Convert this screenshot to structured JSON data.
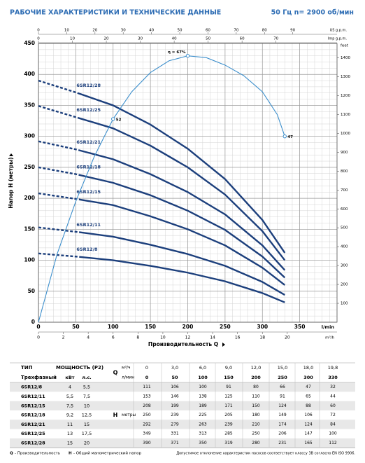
{
  "header": {
    "title": "РАБОЧИЕ ХАРАКТЕРИСТИКИ И ТЕХНИЧЕСКИЕ ДАННЫЕ",
    "subtitle": "50 Гц   n= 2900 об/мин"
  },
  "chart_data": {
    "type": "line",
    "x_label": "Производительность Q",
    "x_unit": "l/min",
    "y_label": "Напор H (метры)",
    "xlim": [
      0,
      400
    ],
    "xticks": [
      0,
      50,
      100,
      150,
      200,
      250,
      300,
      350
    ],
    "ylim": [
      0,
      450
    ],
    "yticks": [
      0,
      50,
      100,
      150,
      200,
      250,
      300,
      350,
      400,
      450
    ],
    "y2_label": "feet",
    "y2lim": [
      0,
      1476.4
    ],
    "y2ticks": [
      100,
      200,
      300,
      400,
      500,
      600,
      700,
      800,
      900,
      1000,
      1100,
      1200,
      1300,
      1400
    ],
    "top_axes": [
      {
        "label": "US g.p.m.",
        "lim": [
          0,
          105.67
        ],
        "ticks": [
          0,
          10,
          20,
          30,
          40,
          50,
          60,
          70,
          80,
          90
        ]
      },
      {
        "label": "Imp g.p.m.",
        "lim": [
          0,
          87.99
        ],
        "ticks": [
          0,
          10,
          20,
          30,
          40,
          50,
          60,
          70
        ]
      }
    ],
    "bottom_axis2": {
      "label": "m³/h",
      "lim": [
        0,
        24
      ],
      "ticks": [
        0,
        2,
        4,
        6,
        8,
        10,
        12,
        14,
        16,
        18,
        20
      ]
    },
    "grid": true,
    "x": [
      0,
      50,
      100,
      150,
      200,
      250,
      300,
      330
    ],
    "series": [
      {
        "name": "6SR12/8",
        "color": "#1c3f7c",
        "values": [
          111,
          106,
          100,
          91,
          80,
          66,
          47,
          32
        ]
      },
      {
        "name": "6SR12/11",
        "color": "#1c3f7c",
        "values": [
          153,
          146,
          138,
          125,
          110,
          91,
          65,
          44
        ]
      },
      {
        "name": "6SR12/15",
        "color": "#1c3f7c",
        "values": [
          208,
          199,
          189,
          171,
          150,
          124,
          88,
          60
        ]
      },
      {
        "name": "6SR12/18",
        "color": "#1c3f7c",
        "values": [
          250,
          239,
          225,
          205,
          180,
          149,
          106,
          72
        ]
      },
      {
        "name": "6SR12/21",
        "color": "#1c3f7c",
        "values": [
          292,
          279,
          263,
          239,
          210,
          174,
          124,
          84
        ]
      },
      {
        "name": "6SR12/25",
        "color": "#1c3f7c",
        "values": [
          349,
          331,
          313,
          285,
          250,
          206,
          147,
          100
        ]
      },
      {
        "name": "6SR12/28",
        "color": "#1c3f7c",
        "values": [
          390,
          371,
          350,
          319,
          280,
          231,
          165,
          112
        ]
      }
    ],
    "efficiency": {
      "color": "#3d8fcc",
      "x": [
        0,
        25,
        50,
        75,
        100,
        125,
        150,
        175,
        200,
        225,
        250,
        275,
        300,
        320,
        330
      ],
      "values": [
        0,
        110,
        195,
        268,
        328,
        372,
        403,
        422,
        430,
        427,
        415,
        398,
        372,
        335,
        300
      ],
      "annotations": [
        {
          "x": 200,
          "y": 430,
          "text": "η = 67%"
        },
        {
          "x": 100,
          "y": 328,
          "text": "52"
        },
        {
          "x": 330,
          "y": 300,
          "text": "47"
        }
      ]
    }
  },
  "table": {
    "type": "ТИП",
    "power": "МОЩНОСТЬ (P2)",
    "q": "Q",
    "q_unit1": "м³/ч",
    "q_unit2": "л/мин",
    "phase": "Трехфазный",
    "kw": "кВт",
    "hp": "л.с.",
    "h": "H",
    "h_unit": "метры",
    "flow_m3h": [
      "0",
      "3,0",
      "6,0",
      "9,0",
      "12,0",
      "15,0",
      "18,0",
      "19,8"
    ],
    "rows": [
      {
        "kw": "4",
        "hp": "5,5"
      },
      {
        "kw": "5,5",
        "hp": "7,5"
      },
      {
        "kw": "7,5",
        "hp": "10"
      },
      {
        "kw": "9,2",
        "hp": "12,5"
      },
      {
        "kw": "11",
        "hp": "15"
      },
      {
        "kw": "13",
        "hp": "17,5"
      },
      {
        "kw": "15",
        "hp": "20"
      }
    ],
    "footer": {
      "q": "Q",
      "q_text": "- Производительность",
      "h": "H",
      "h_text": "- Общий манометрический напор",
      "note": "Допустимое отклонение характеристик насосов соответствует классу 3В согласно EN ISO 9906."
    }
  }
}
